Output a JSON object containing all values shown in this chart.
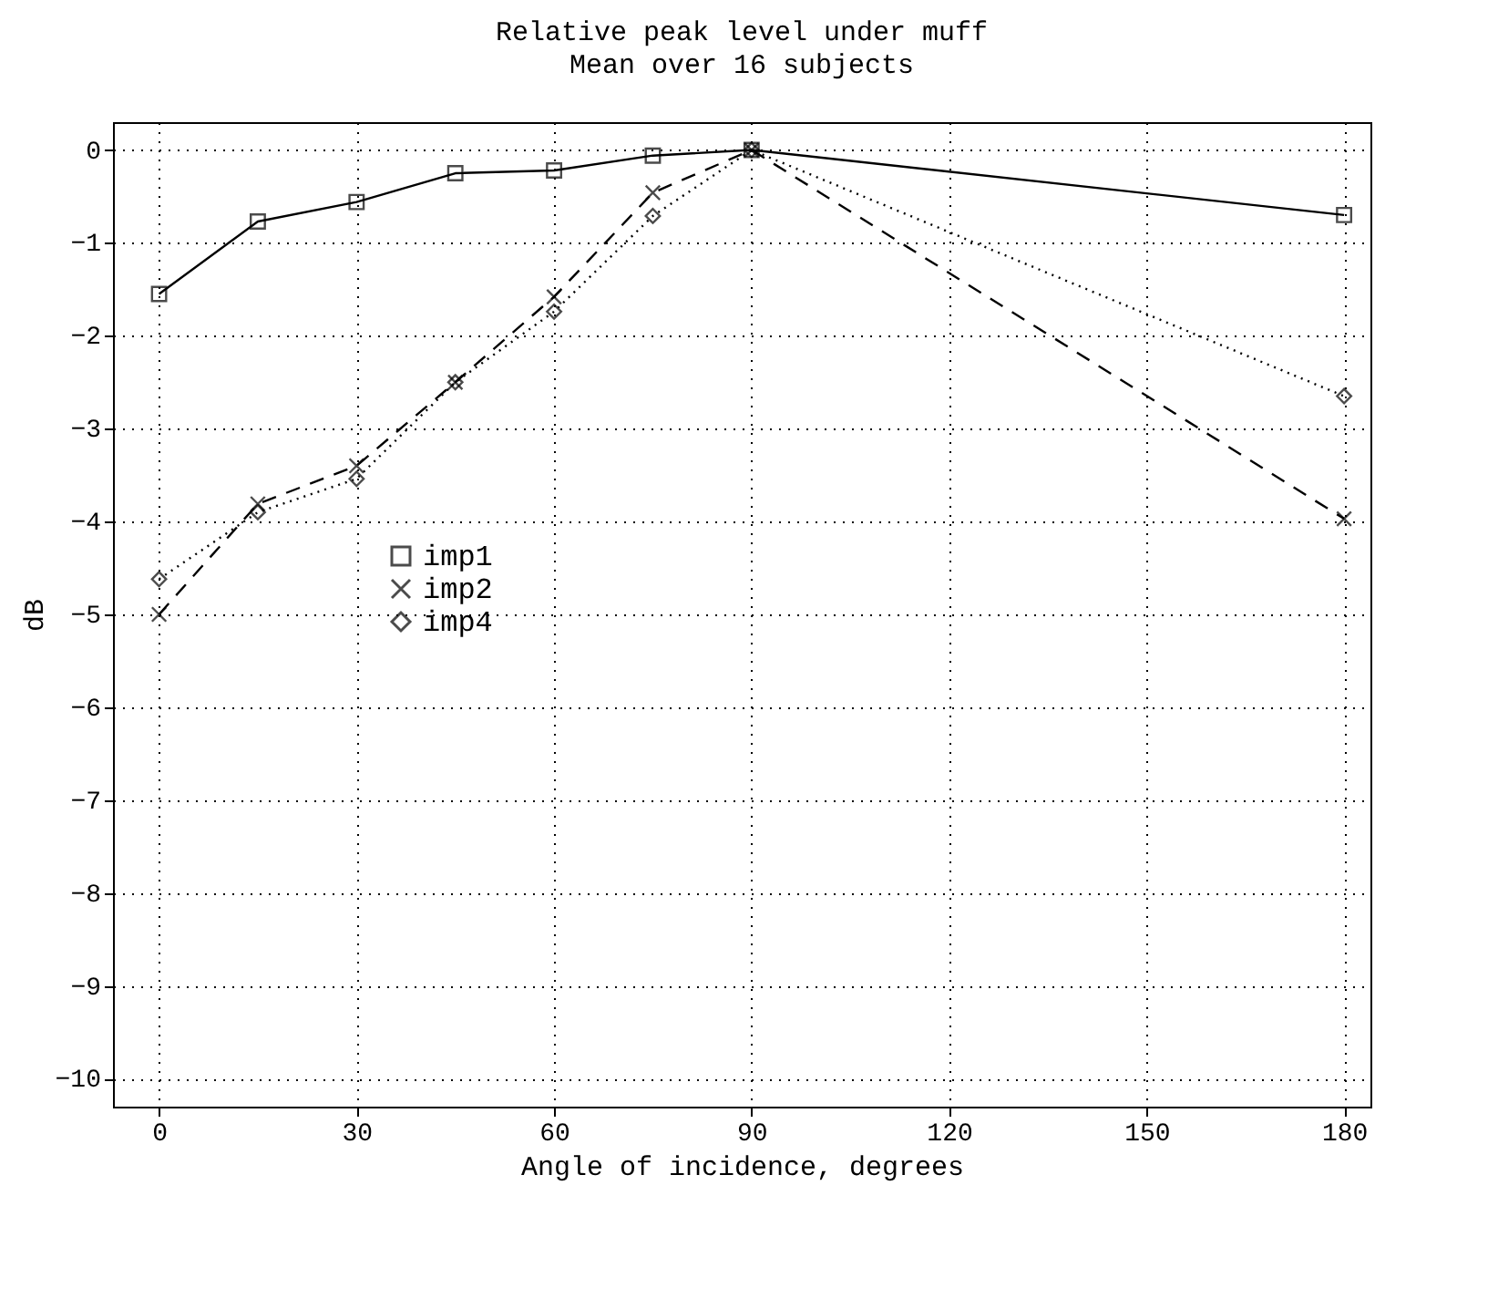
{
  "chart_data": {
    "type": "line",
    "title": "Relative peak level under muff",
    "subtitle": "Mean over 16 subjects",
    "xlabel": "Angle of incidence, degrees",
    "ylabel": "dB",
    "x": [
      0,
      15,
      30,
      45,
      60,
      75,
      90,
      180
    ],
    "series": [
      {
        "name": "imp1",
        "color": "#000000",
        "marker": "square",
        "line_style": "solid",
        "values": [
          -1.55,
          -0.77,
          -0.56,
          -0.25,
          -0.22,
          -0.06,
          0,
          -0.7
        ]
      },
      {
        "name": "imp2",
        "color": "#000000",
        "marker": "cross",
        "line_style": "dashed",
        "values": [
          -5.0,
          -3.81,
          -3.4,
          -2.5,
          -1.58,
          -0.46,
          0,
          -3.97
        ]
      },
      {
        "name": "imp4",
        "color": "#000000",
        "marker": "diamond",
        "line_style": "dotted",
        "values": [
          -4.62,
          -3.9,
          -3.54,
          -2.5,
          -1.74,
          -0.71,
          0,
          -2.65
        ]
      }
    ],
    "xlim": [
      -7,
      184
    ],
    "xticks": [
      0,
      30,
      60,
      90,
      120,
      150,
      180
    ],
    "ylim": [
      -10.3,
      0.3
    ],
    "yticks": [
      0,
      -1,
      -2,
      -3,
      -4,
      -5,
      -6,
      -7,
      -8,
      -9,
      -10
    ],
    "grid": true,
    "legend": "left"
  }
}
